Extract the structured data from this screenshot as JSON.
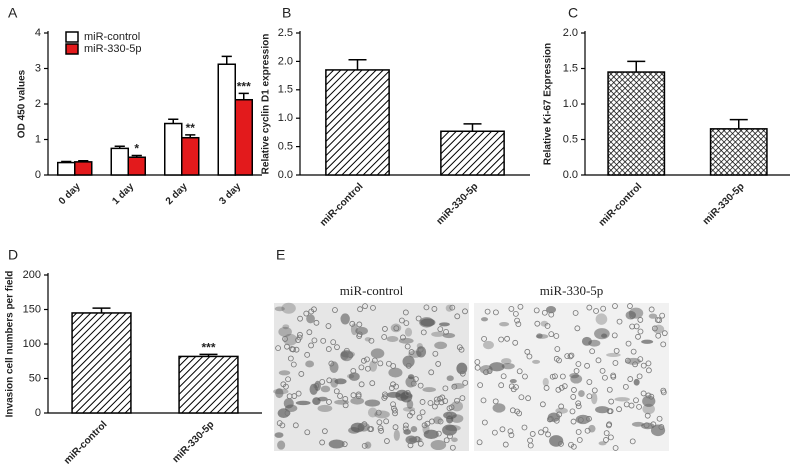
{
  "chart_data": [
    {
      "panel": "A",
      "type": "bar",
      "ylabel": "OD 450 values",
      "categories": [
        "0 day",
        "1 day",
        "2 day",
        "3 day"
      ],
      "series": [
        {
          "name": "miR-control",
          "color": "#ffffff",
          "values": [
            0.35,
            0.75,
            1.45,
            3.12
          ],
          "errors": [
            0.03,
            0.06,
            0.12,
            0.22
          ]
        },
        {
          "name": "miR-330-5p",
          "color": "#e31a1c",
          "values": [
            0.37,
            0.5,
            1.05,
            2.12
          ],
          "errors": [
            0.03,
            0.05,
            0.08,
            0.18
          ],
          "significance": [
            null,
            "*",
            "**",
            "***"
          ]
        }
      ],
      "ylim": [
        0,
        4
      ],
      "yticks": [
        0,
        1,
        2,
        3,
        4
      ],
      "legend": "upper-left"
    },
    {
      "panel": "B",
      "type": "bar",
      "ylabel": "Relative cyclin D1 expression",
      "categories": [
        "miR-control",
        "miR-330-5p"
      ],
      "values": [
        1.85,
        0.77
      ],
      "errors": [
        0.18,
        0.13
      ],
      "color": "#ffffff",
      "fill_pattern": "diagonal",
      "ylim": [
        0,
        2.5
      ],
      "yticks": [
        {
          "value": 0,
          "label": "0.0"
        },
        0.5,
        {
          "value": 1,
          "label": "1.0"
        },
        1.5,
        {
          "value": 2,
          "label": "2.0"
        },
        2.5
      ]
    },
    {
      "panel": "C",
      "type": "bar",
      "ylabel": "Relative Ki-67 Expression",
      "categories": [
        "miR-control",
        "miR-330-5p"
      ],
      "values": [
        1.45,
        0.65
      ],
      "errors": [
        0.15,
        0.13
      ],
      "color": "#ffffff",
      "fill_pattern": "crosshatch",
      "ylim": [
        0,
        2
      ],
      "yticks": [
        {
          "value": 0,
          "label": "0.0"
        },
        0.5,
        {
          "value": 1,
          "label": "1.0"
        },
        1.5,
        {
          "value": 2,
          "label": "2.0"
        }
      ]
    },
    {
      "panel": "D",
      "type": "bar",
      "ylabel": "Invasion cell numbers per field",
      "categories": [
        "miR-control",
        "miR-330-5p"
      ],
      "values": [
        145,
        82
      ],
      "errors": [
        7,
        3
      ],
      "significance": [
        null,
        "***"
      ],
      "color": "#ffffff",
      "fill_pattern": "diagonal",
      "ylim": [
        0,
        200
      ],
      "yticks": [
        0,
        50,
        100,
        150,
        200
      ]
    }
  ],
  "panel_e": {
    "panel": "E",
    "captions": [
      "miR-control",
      "miR-330-5p"
    ]
  }
}
